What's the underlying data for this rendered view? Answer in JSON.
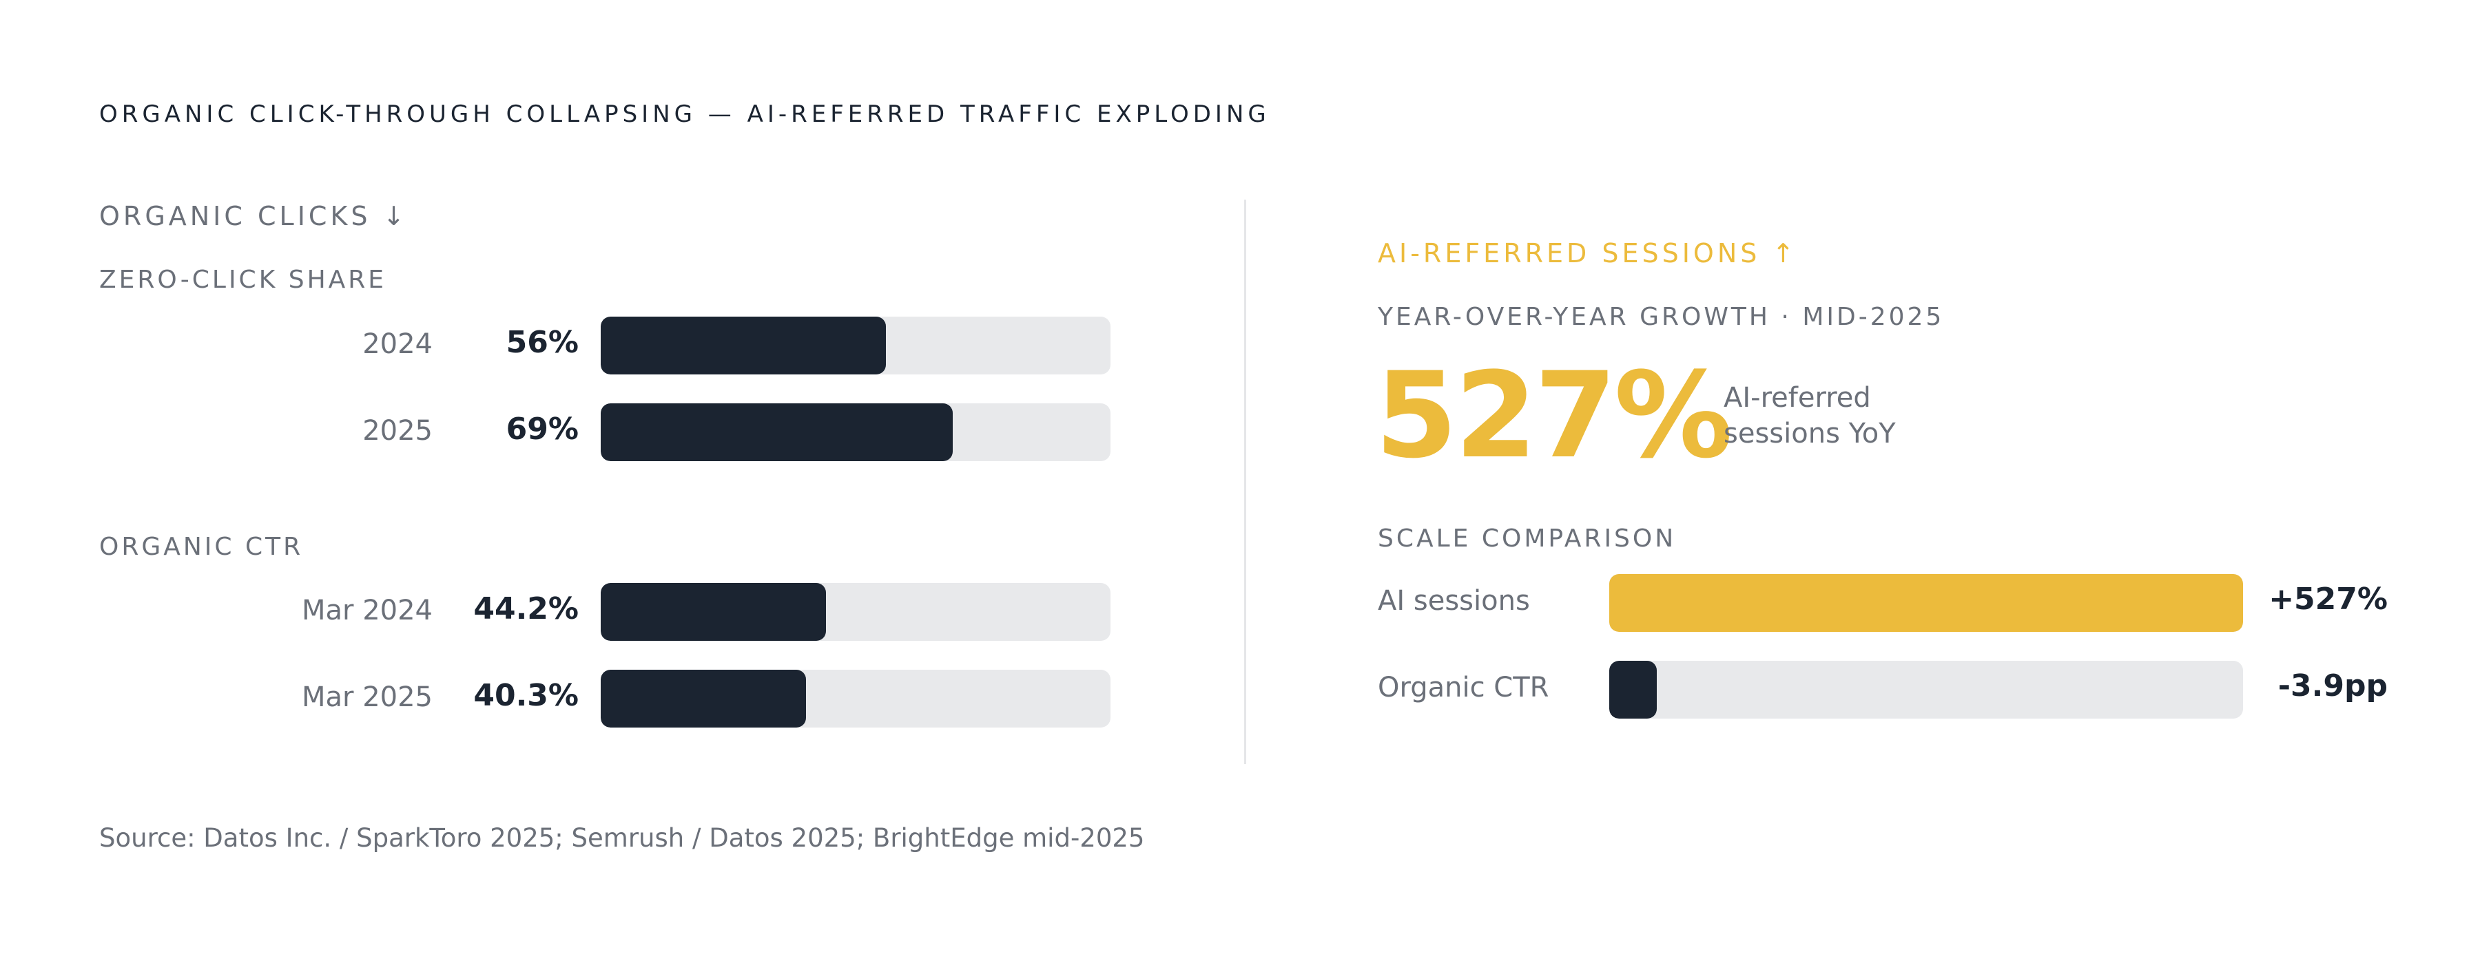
{
  "title": "ORGANIC CLICK-THROUGH COLLAPSING — AI-REFERRED TRAFFIC EXPLODING",
  "left_panel": {
    "heading": "ORGANIC CLICKS ↓"
  },
  "right_panel": {
    "heading": "AI-REFERRED SESSIONS ↑",
    "growth_label": "YEAR-OVER-YEAR GROWTH · MID-2025",
    "big_number": "527%",
    "big_caption_line1": "AI-referred",
    "big_caption_line2": "sessions YoY",
    "scale_heading": "SCALE COMPARISON"
  },
  "source": "Source: Datos Inc. / SparkToro 2025; Semrush / Datos 2025; BrightEdge mid-2025",
  "colors": {
    "dark": "#1b2431",
    "accent": "#ecbb3c",
    "track": "#e8e9eb",
    "muted": "#6b7079"
  },
  "chart_data": [
    {
      "type": "bar",
      "title": "ZERO-CLICK SHARE",
      "categories": [
        "2024",
        "2025"
      ],
      "values": [
        56,
        69
      ],
      "value_labels": [
        "56%",
        "69%"
      ],
      "xlim": [
        0,
        100
      ]
    },
    {
      "type": "bar",
      "title": "ORGANIC CTR",
      "categories": [
        "Mar 2024",
        "Mar 2025"
      ],
      "values": [
        44.2,
        40.3
      ],
      "value_labels": [
        "44.2%",
        "40.3%"
      ],
      "xlim": [
        0,
        100
      ]
    },
    {
      "type": "bar",
      "title": "SCALE COMPARISON",
      "categories": [
        "AI sessions",
        "Organic CTR"
      ],
      "values": [
        527,
        -3.9
      ],
      "value_labels": [
        "+527%",
        "-3.9pp"
      ],
      "fill_fractions": [
        1.0,
        0.075
      ],
      "colors": [
        "#ecbb3c",
        "#1b2431"
      ]
    }
  ]
}
